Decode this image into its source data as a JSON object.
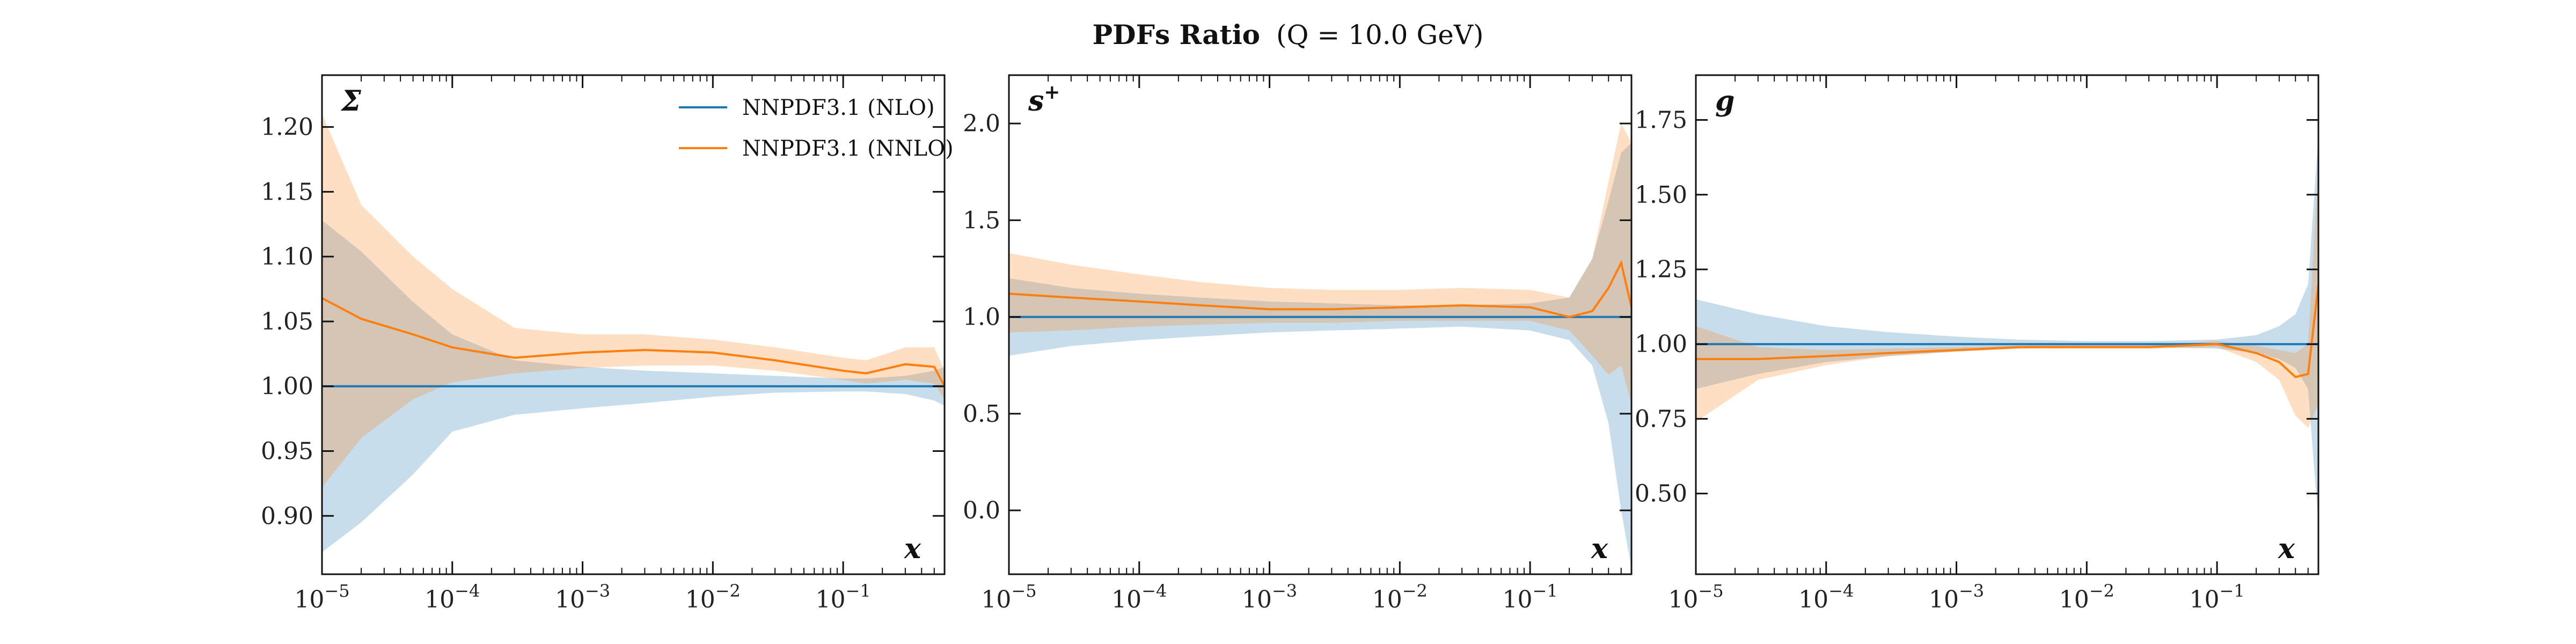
{
  "figure": {
    "title_bold": "PDFs Ratio",
    "title_rest": "(Q = 10.0 GeV)"
  },
  "colors": {
    "nlo": "#1f77b4",
    "nlo_band": "#c6dcef",
    "nnlo": "#ff7f0e",
    "nnlo_band": "#ffd9bc",
    "overlap_band": "#d9c8b6",
    "axes": "#111111"
  },
  "chart_data": [
    {
      "type": "line",
      "panel_label": "Σ",
      "xlabel": "x",
      "xscale": "log",
      "xlim": [
        1e-05,
        0.6
      ],
      "ylim": [
        0.855,
        1.24
      ],
      "yticks": [
        0.9,
        0.95,
        1.0,
        1.05,
        1.1,
        1.15,
        1.2
      ],
      "ytick_labels": [
        "0.90",
        "0.95",
        "1.00",
        "1.05",
        "1.10",
        "1.15",
        "1.20"
      ],
      "legend": {
        "placement": "top-right",
        "entries": [
          "NNPDF3.1 (NLO)",
          "NNPDF3.1 (NNLO)"
        ]
      },
      "x": [
        1e-05,
        2e-05,
        5e-05,
        0.0001,
        0.0003,
        0.001,
        0.003,
        0.01,
        0.03,
        0.1,
        0.15,
        0.3,
        0.5,
        0.6
      ],
      "series": [
        {
          "name": "NNPDF3.1 (NLO)",
          "values": [
            1.0,
            1.0,
            1.0,
            1.0,
            1.0,
            1.0,
            1.0,
            1.0,
            1.0,
            1.0,
            1.0,
            1.0,
            1.0,
            1.0
          ],
          "lower": [
            0.872,
            0.895,
            0.932,
            0.965,
            0.978,
            0.983,
            0.987,
            0.992,
            0.995,
            0.996,
            0.996,
            0.994,
            0.989,
            0.985
          ],
          "upper": [
            1.128,
            1.104,
            1.065,
            1.04,
            1.02,
            1.015,
            1.012,
            1.01,
            1.008,
            1.006,
            1.006,
            1.008,
            1.012,
            1.015
          ]
        },
        {
          "name": "NNPDF3.1 (NNLO)",
          "values": [
            1.068,
            1.052,
            1.04,
            1.03,
            1.022,
            1.026,
            1.028,
            1.026,
            1.02,
            1.012,
            1.01,
            1.017,
            1.015,
            1.0
          ],
          "lower": [
            0.922,
            0.96,
            0.99,
            1.003,
            1.01,
            1.014,
            1.016,
            1.016,
            1.012,
            1.005,
            1.002,
            1.005,
            1.002,
            0.99
          ],
          "upper": [
            1.21,
            1.14,
            1.1,
            1.075,
            1.045,
            1.04,
            1.04,
            1.036,
            1.03,
            1.022,
            1.02,
            1.03,
            1.03,
            1.012
          ]
        }
      ]
    },
    {
      "type": "line",
      "panel_label": "s+",
      "xlabel": "x",
      "xscale": "log",
      "xlim": [
        1e-05,
        0.6
      ],
      "ylim": [
        -0.33,
        2.25
      ],
      "yticks": [
        0.0,
        0.5,
        1.0,
        1.5,
        2.0
      ],
      "ytick_labels": [
        "0.0",
        "0.5",
        "1.0",
        "1.5",
        "2.0"
      ],
      "x": [
        1e-05,
        3e-05,
        0.0001,
        0.0003,
        0.001,
        0.003,
        0.01,
        0.03,
        0.1,
        0.2,
        0.3,
        0.4,
        0.5,
        0.6
      ],
      "series": [
        {
          "name": "NNPDF3.1 (NLO)",
          "values": [
            1.0,
            1.0,
            1.0,
            1.0,
            1.0,
            1.0,
            1.0,
            1.0,
            1.0,
            1.0,
            1.0,
            1.0,
            1.0,
            1.0
          ],
          "lower": [
            0.8,
            0.85,
            0.88,
            0.9,
            0.92,
            0.93,
            0.94,
            0.95,
            0.93,
            0.88,
            0.75,
            0.45,
            0.0,
            -0.3
          ],
          "upper": [
            1.2,
            1.15,
            1.12,
            1.1,
            1.08,
            1.07,
            1.06,
            1.06,
            1.07,
            1.1,
            1.3,
            1.6,
            1.85,
            1.9
          ]
        },
        {
          "name": "NNPDF3.1 (NNLO)",
          "values": [
            1.12,
            1.1,
            1.08,
            1.06,
            1.04,
            1.04,
            1.05,
            1.06,
            1.05,
            1.0,
            1.03,
            1.15,
            1.28,
            1.05
          ],
          "lower": [
            0.92,
            0.93,
            0.95,
            0.96,
            0.97,
            0.97,
            0.98,
            0.98,
            0.98,
            0.93,
            0.8,
            0.7,
            0.75,
            0.55
          ],
          "upper": [
            1.33,
            1.27,
            1.22,
            1.18,
            1.15,
            1.14,
            1.14,
            1.15,
            1.14,
            1.1,
            1.3,
            1.7,
            2.0,
            1.9
          ]
        }
      ]
    },
    {
      "type": "line",
      "panel_label": "g",
      "xlabel": "x",
      "xscale": "log",
      "xlim": [
        1e-05,
        0.6
      ],
      "ylim": [
        0.23,
        1.9
      ],
      "yticks": [
        0.5,
        0.75,
        1.0,
        1.25,
        1.5,
        1.75
      ],
      "ytick_labels": [
        "0.50",
        "0.75",
        "1.00",
        "1.25",
        "1.50",
        "1.75"
      ],
      "x": [
        1e-05,
        3e-05,
        0.0001,
        0.0003,
        0.001,
        0.003,
        0.01,
        0.03,
        0.1,
        0.2,
        0.3,
        0.4,
        0.5,
        0.6
      ],
      "series": [
        {
          "name": "NNPDF3.1 (NLO)",
          "values": [
            1.0,
            1.0,
            1.0,
            1.0,
            1.0,
            1.0,
            1.0,
            1.0,
            1.0,
            1.0,
            1.0,
            1.0,
            1.0,
            1.0
          ],
          "lower": [
            0.85,
            0.9,
            0.94,
            0.96,
            0.975,
            0.985,
            0.99,
            0.99,
            0.985,
            0.97,
            0.95,
            0.92,
            0.85,
            0.4
          ],
          "upper": [
            1.15,
            1.1,
            1.06,
            1.04,
            1.025,
            1.015,
            1.01,
            1.01,
            1.015,
            1.03,
            1.06,
            1.1,
            1.2,
            1.7
          ]
        },
        {
          "name": "NNPDF3.1 (NNLO)",
          "values": [
            0.95,
            0.95,
            0.96,
            0.97,
            0.98,
            0.99,
            0.99,
            0.99,
            1.0,
            0.97,
            0.94,
            0.89,
            0.9,
            1.2
          ],
          "lower": [
            0.74,
            0.88,
            0.93,
            0.96,
            0.975,
            0.985,
            0.985,
            0.985,
            0.99,
            0.94,
            0.88,
            0.76,
            0.72,
            0.8
          ],
          "upper": [
            1.06,
            0.99,
            0.98,
            0.985,
            0.99,
            0.995,
            0.997,
            0.997,
            1.01,
            0.995,
            0.98,
            0.97,
            1.0,
            1.6
          ]
        }
      ]
    }
  ]
}
